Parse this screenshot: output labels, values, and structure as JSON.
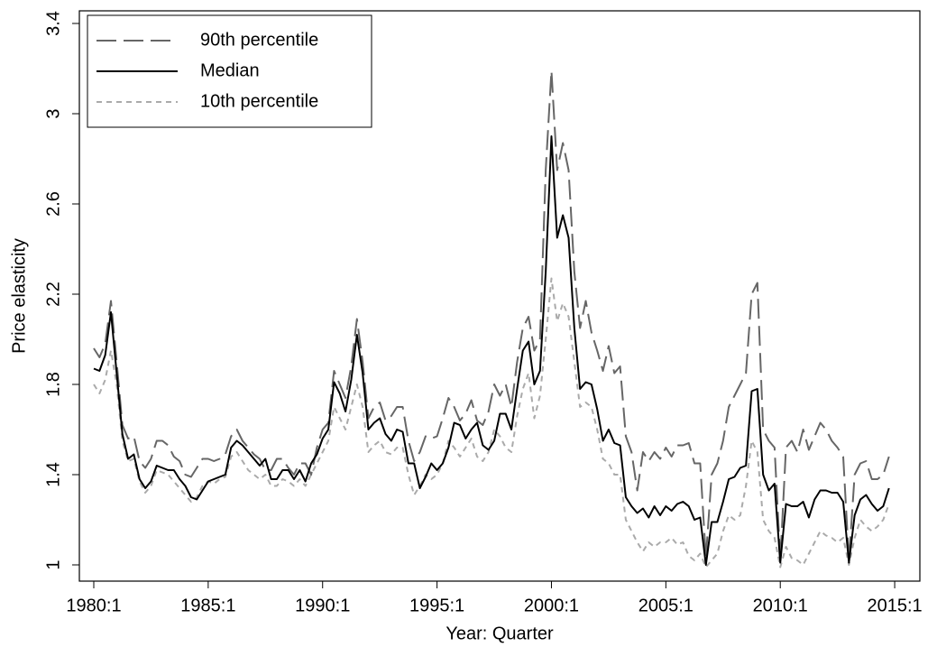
{
  "chart_data": {
    "type": "line",
    "xlabel": "Year: Quarter",
    "ylabel": "Price elasticity",
    "x": [
      1980,
      1980.25,
      1980.5,
      1980.75,
      1981,
      1981.25,
      1981.5,
      1981.75,
      1982,
      1982.25,
      1982.5,
      1982.75,
      1983,
      1983.25,
      1983.5,
      1983.75,
      1984,
      1984.25,
      1984.5,
      1984.75,
      1985,
      1985.25,
      1985.5,
      1985.75,
      1986,
      1986.25,
      1986.5,
      1986.75,
      1987,
      1987.25,
      1987.5,
      1987.75,
      1988,
      1988.25,
      1988.5,
      1988.75,
      1989,
      1989.25,
      1989.5,
      1989.75,
      1990,
      1990.25,
      1990.5,
      1990.75,
      1991,
      1991.25,
      1991.5,
      1991.75,
      1992,
      1992.25,
      1992.5,
      1992.75,
      1993,
      1993.25,
      1993.5,
      1993.75,
      1994,
      1994.25,
      1994.5,
      1994.75,
      1995,
      1995.25,
      1995.5,
      1995.75,
      1996,
      1996.25,
      1996.5,
      1996.75,
      1997,
      1997.25,
      1997.5,
      1997.75,
      1998,
      1998.25,
      1998.5,
      1998.75,
      1999,
      1999.25,
      1999.5,
      1999.75,
      2000,
      2000.25,
      2000.5,
      2000.75,
      2001,
      2001.25,
      2001.5,
      2001.75,
      2002,
      2002.25,
      2002.5,
      2002.75,
      2003,
      2003.25,
      2003.5,
      2003.75,
      2004,
      2004.25,
      2004.5,
      2004.75,
      2005,
      2005.25,
      2005.5,
      2005.75,
      2006,
      2006.25,
      2006.5,
      2006.75,
      2007,
      2007.25,
      2007.5,
      2007.75,
      2008,
      2008.25,
      2008.5,
      2008.75,
      2009,
      2009.25,
      2009.5,
      2009.75,
      2010,
      2010.25,
      2010.5,
      2010.75,
      2011,
      2011.25,
      2011.5,
      2011.75,
      2012,
      2012.25,
      2012.5,
      2012.75,
      2013,
      2013.25,
      2013.5,
      2013.75,
      2014,
      2014.25,
      2014.5,
      2014.75
    ],
    "series": [
      {
        "name": "90th percentile",
        "color": "#666666",
        "linestyle": "dashed",
        "values": [
          1.96,
          1.92,
          1.98,
          2.17,
          1.9,
          1.62,
          1.56,
          1.57,
          1.46,
          1.43,
          1.47,
          1.55,
          1.55,
          1.53,
          1.48,
          1.46,
          1.4,
          1.39,
          1.43,
          1.47,
          1.47,
          1.46,
          1.47,
          1.49,
          1.57,
          1.6,
          1.55,
          1.52,
          1.49,
          1.47,
          1.42,
          1.42,
          1.47,
          1.47,
          1.43,
          1.4,
          1.45,
          1.45,
          1.4,
          1.52,
          1.6,
          1.63,
          1.86,
          1.8,
          1.74,
          1.88,
          2.09,
          1.9,
          1.65,
          1.7,
          1.72,
          1.64,
          1.66,
          1.7,
          1.7,
          1.55,
          1.46,
          1.5,
          1.57,
          1.56,
          1.57,
          1.65,
          1.74,
          1.7,
          1.64,
          1.67,
          1.73,
          1.64,
          1.62,
          1.68,
          1.8,
          1.75,
          1.8,
          1.7,
          1.9,
          2.05,
          2.1,
          1.95,
          2.0,
          2.75,
          3.19,
          2.75,
          2.87,
          2.75,
          2.3,
          2.05,
          2.17,
          2.03,
          1.95,
          1.86,
          1.97,
          1.85,
          1.88,
          1.57,
          1.5,
          1.33,
          1.5,
          1.46,
          1.5,
          1.47,
          1.52,
          1.48,
          1.53,
          1.53,
          1.54,
          1.45,
          1.45,
          1.03,
          1.4,
          1.45,
          1.55,
          1.7,
          1.75,
          1.8,
          1.85,
          2.2,
          2.25,
          1.6,
          1.55,
          1.52,
          1.02,
          1.52,
          1.55,
          1.5,
          1.6,
          1.51,
          1.57,
          1.63,
          1.6,
          1.55,
          1.52,
          1.48,
          1.02,
          1.4,
          1.45,
          1.46,
          1.38,
          1.38,
          1.4,
          1.48
        ]
      },
      {
        "name": "Median",
        "color": "#000000",
        "linestyle": "solid",
        "values": [
          1.87,
          1.86,
          1.93,
          2.12,
          1.85,
          1.58,
          1.47,
          1.49,
          1.38,
          1.34,
          1.37,
          1.44,
          1.43,
          1.42,
          1.42,
          1.38,
          1.35,
          1.3,
          1.29,
          1.33,
          1.37,
          1.38,
          1.39,
          1.4,
          1.52,
          1.55,
          1.53,
          1.5,
          1.47,
          1.44,
          1.47,
          1.38,
          1.38,
          1.42,
          1.42,
          1.38,
          1.42,
          1.37,
          1.45,
          1.49,
          1.56,
          1.6,
          1.81,
          1.76,
          1.68,
          1.82,
          2.02,
          1.85,
          1.6,
          1.63,
          1.65,
          1.58,
          1.55,
          1.6,
          1.59,
          1.45,
          1.45,
          1.34,
          1.39,
          1.45,
          1.42,
          1.45,
          1.52,
          1.63,
          1.62,
          1.56,
          1.6,
          1.63,
          1.53,
          1.51,
          1.55,
          1.67,
          1.67,
          1.6,
          1.78,
          1.95,
          1.99,
          1.8,
          1.86,
          2.3,
          2.9,
          2.45,
          2.55,
          2.45,
          2.05,
          1.78,
          1.81,
          1.8,
          1.69,
          1.55,
          1.6,
          1.54,
          1.53,
          1.3,
          1.26,
          1.23,
          1.25,
          1.21,
          1.26,
          1.22,
          1.26,
          1.24,
          1.27,
          1.28,
          1.26,
          1.2,
          1.21,
          1.0,
          1.19,
          1.19,
          1.28,
          1.38,
          1.39,
          1.43,
          1.44,
          1.77,
          1.78,
          1.4,
          1.33,
          1.36,
          1.01,
          1.27,
          1.26,
          1.26,
          1.28,
          1.21,
          1.29,
          1.33,
          1.33,
          1.32,
          1.32,
          1.28,
          1.01,
          1.22,
          1.29,
          1.31,
          1.27,
          1.24,
          1.26,
          1.34
        ]
      },
      {
        "name": "10th percentile",
        "color": "#aaaaaa",
        "linestyle": "dotted",
        "values": [
          1.8,
          1.76,
          1.82,
          1.95,
          1.8,
          1.55,
          1.46,
          1.47,
          1.37,
          1.32,
          1.35,
          1.42,
          1.41,
          1.4,
          1.37,
          1.34,
          1.31,
          1.28,
          1.3,
          1.35,
          1.37,
          1.36,
          1.38,
          1.39,
          1.48,
          1.5,
          1.46,
          1.42,
          1.4,
          1.38,
          1.4,
          1.35,
          1.35,
          1.38,
          1.37,
          1.35,
          1.38,
          1.35,
          1.4,
          1.45,
          1.5,
          1.55,
          1.7,
          1.65,
          1.6,
          1.7,
          1.8,
          1.7,
          1.5,
          1.53,
          1.55,
          1.5,
          1.49,
          1.52,
          1.52,
          1.4,
          1.31,
          1.35,
          1.4,
          1.38,
          1.4,
          1.45,
          1.55,
          1.52,
          1.48,
          1.52,
          1.56,
          1.48,
          1.46,
          1.5,
          1.6,
          1.57,
          1.52,
          1.5,
          1.66,
          1.78,
          1.85,
          1.65,
          1.75,
          2.0,
          2.27,
          2.08,
          2.16,
          2.1,
          1.9,
          1.7,
          1.72,
          1.7,
          1.6,
          1.47,
          1.45,
          1.4,
          1.4,
          1.2,
          1.15,
          1.1,
          1.06,
          1.1,
          1.08,
          1.1,
          1.1,
          1.12,
          1.09,
          1.1,
          1.04,
          1.02,
          1.05,
          0.99,
          1.02,
          1.05,
          1.15,
          1.22,
          1.2,
          1.22,
          1.35,
          1.55,
          1.5,
          1.2,
          1.15,
          1.12,
          0.99,
          1.08,
          1.03,
          1.02,
          1.0,
          1.05,
          1.1,
          1.15,
          1.13,
          1.12,
          1.1,
          1.12,
          1.0,
          1.12,
          1.2,
          1.17,
          1.15,
          1.17,
          1.2,
          1.27
        ]
      }
    ],
    "xlim": [
      1979.37,
      2016.1
    ],
    "ylim": [
      0.928,
      3.456
    ],
    "xticks": [
      {
        "value": 1980,
        "label": "1980:1"
      },
      {
        "value": 1985,
        "label": "1985:1"
      },
      {
        "value": 1990,
        "label": "1990:1"
      },
      {
        "value": 1995,
        "label": "1995:1"
      },
      {
        "value": 2000,
        "label": "2000:1"
      },
      {
        "value": 2005,
        "label": "2005:1"
      },
      {
        "value": 2010,
        "label": "2010:1"
      },
      {
        "value": 2015,
        "label": "2015:1"
      }
    ],
    "yticks": [
      1,
      1.4,
      1.8,
      2.2,
      2.6,
      3,
      3.4
    ],
    "grid": false,
    "legend": "upper-left"
  }
}
